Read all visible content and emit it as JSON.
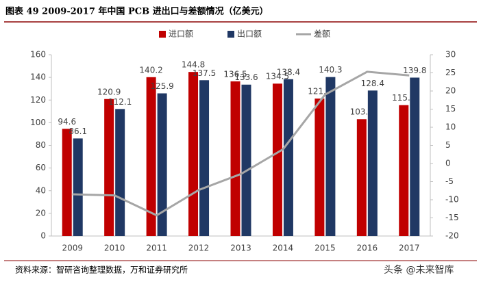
{
  "title": "图表 49    2009-2017 年中国 PCB 进出口与差额情况（亿美元）",
  "source": "资料来源：智研咨询整理数据，万和证券研究所",
  "watermark": "头条 @未来智库",
  "chart_data": {
    "type": "bar",
    "categories": [
      "2009",
      "2010",
      "2011",
      "2012",
      "2013",
      "2014",
      "2015",
      "2016",
      "2017"
    ],
    "series": [
      {
        "name": "进口额",
        "type": "bar",
        "color": "#c00000",
        "values": [
          94.6,
          120.9,
          140.2,
          144.8,
          136.5,
          134.5,
          121.3,
          103.1,
          115.5
        ]
      },
      {
        "name": "出口额",
        "type": "bar",
        "color": "#203864",
        "values": [
          86.1,
          112.1,
          125.9,
          137.5,
          133.6,
          138.4,
          140.3,
          128.4,
          139.8
        ]
      },
      {
        "name": "差额",
        "type": "line",
        "axis": "y2",
        "color": "#a6a6a6",
        "values": [
          -8.5,
          -8.8,
          -14.3,
          -7.3,
          -2.9,
          3.9,
          19.0,
          25.3,
          24.3
        ]
      }
    ],
    "ylim": [
      0,
      160
    ],
    "yticks": [
      0,
      20,
      40,
      60,
      80,
      100,
      120,
      140,
      160
    ],
    "y2lim": [
      -20,
      30
    ],
    "y2ticks": [
      -20,
      -15,
      -10,
      -5,
      0,
      5,
      10,
      15,
      20,
      25,
      30
    ]
  }
}
